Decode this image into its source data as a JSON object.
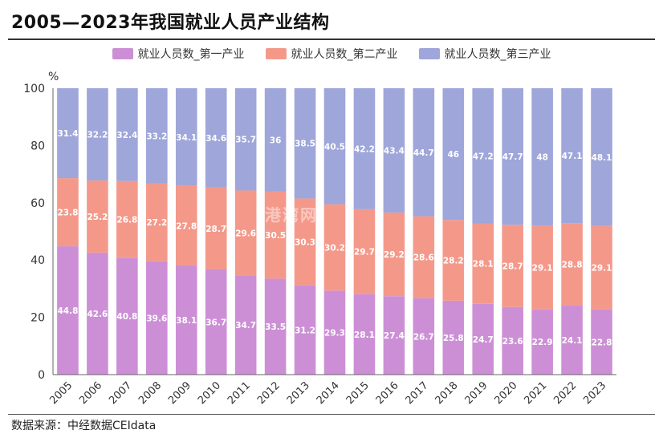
{
  "title": "2005—2023年我国就业人员产业结构",
  "source": "数据来源：中经数据CEIdata",
  "watermark": "港湾网",
  "chart_data": {
    "type": "stacked-bar",
    "unit": "%",
    "ylim": [
      0,
      100
    ],
    "yticks": [
      0,
      20,
      40,
      60,
      80,
      100
    ],
    "categories": [
      "2005",
      "2006",
      "2007",
      "2008",
      "2009",
      "2010",
      "2011",
      "2012",
      "2013",
      "2014",
      "2015",
      "2016",
      "2017",
      "2018",
      "2019",
      "2020",
      "2021",
      "2022",
      "2023"
    ],
    "series": [
      {
        "name": "就业人员数_第一产业",
        "color": "#cc8fd6",
        "values": [
          44.8,
          42.6,
          40.8,
          39.6,
          38.1,
          36.7,
          34.7,
          33.5,
          31.2,
          29.3,
          28.1,
          27.4,
          26.7,
          25.8,
          24.7,
          23.6,
          22.9,
          24.1,
          22.8
        ]
      },
      {
        "name": "就业人员数_第二产业",
        "color": "#f4998a",
        "values": [
          23.8,
          25.2,
          26.8,
          27.2,
          27.8,
          28.7,
          29.6,
          30.5,
          30.3,
          30.2,
          29.7,
          29.2,
          28.6,
          28.2,
          28.1,
          28.7,
          29.1,
          28.8,
          29.1
        ]
      },
      {
        "name": "就业人员数_第三产业",
        "color": "#9ea6da",
        "values": [
          31.4,
          32.2,
          32.4,
          33.2,
          34.1,
          34.6,
          35.7,
          36,
          38.5,
          40.5,
          42.2,
          43.4,
          44.7,
          46,
          47.2,
          47.7,
          48,
          47.1,
          48.1
        ]
      }
    ]
  }
}
